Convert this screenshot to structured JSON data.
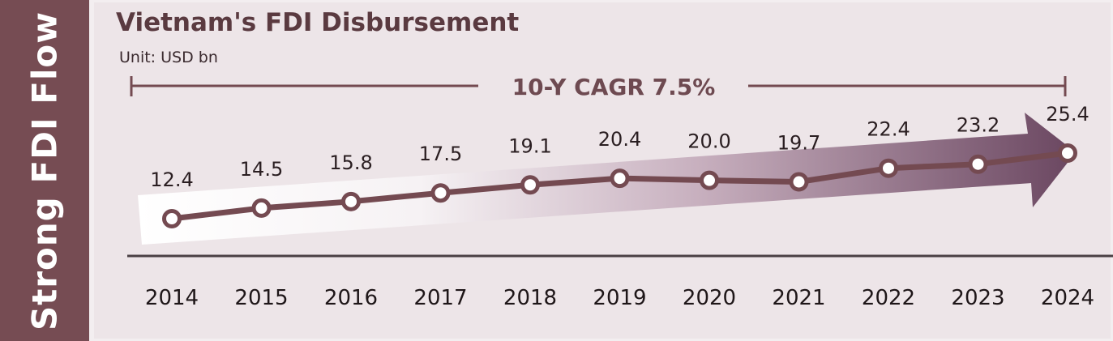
{
  "sidebar": {
    "label": "Strong FDI Flow"
  },
  "colors": {
    "sidebar": "#764c53",
    "line": "#744a51",
    "marker_fill": "#ffffff",
    "arrow_start": "#ffffff",
    "arrow_end": "#6a4660",
    "title": "#5a3a40"
  },
  "chart_data": {
    "type": "line",
    "title": "Vietnam's FDI Disbursement",
    "subtitle": "Unit: USD bn",
    "annotation": "10-Y CAGR 7.5%",
    "categories": [
      "2014",
      "2015",
      "2016",
      "2017",
      "2018",
      "2019",
      "2020",
      "2021",
      "2022",
      "2023",
      "2024"
    ],
    "series": [
      {
        "values": [
          12.4,
          14.5,
          15.8,
          17.5,
          19.1,
          20.4,
          20.0,
          19.7,
          22.4,
          23.2,
          25.4
        ]
      }
    ],
    "value_labels": [
      "12.4",
      "14.5",
      "15.8",
      "17.5",
      "19.1",
      "20.4",
      "20.0",
      "19.7",
      "22.4",
      "23.2",
      "25.4"
    ],
    "grid": false,
    "legend": "none"
  }
}
